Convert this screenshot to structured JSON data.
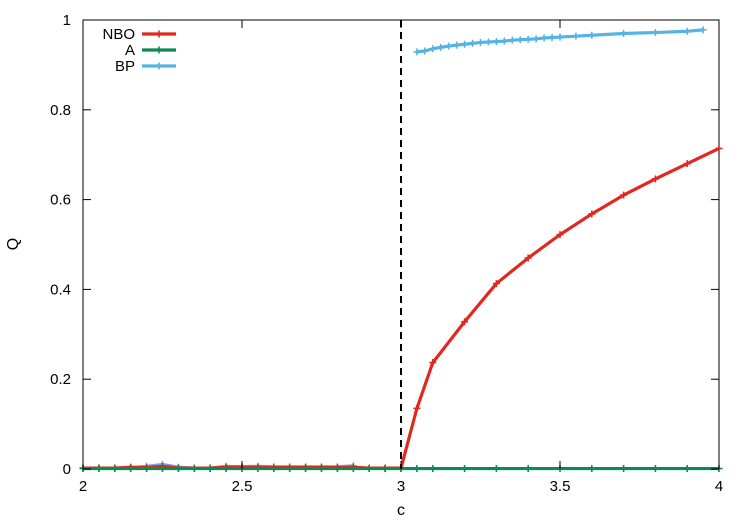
{
  "chart_data": {
    "type": "line",
    "xlabel": "c",
    "ylabel": "Q",
    "xlim": [
      2,
      4
    ],
    "ylim": [
      0,
      1
    ],
    "xticks": [
      "2",
      "2.5",
      "3",
      "3.5",
      "4"
    ],
    "yticks": [
      "0",
      "0.2",
      "0.4",
      "0.6",
      "0.8",
      "1"
    ],
    "grid": false,
    "legend_position": "top-left",
    "vline": {
      "x": 3,
      "style": "dashed",
      "color": "#000000"
    },
    "series": [
      {
        "name": "NBO",
        "color": "#e0281e",
        "x": [
          2,
          2.05,
          2.1,
          2.15,
          2.2,
          2.25,
          2.3,
          2.35,
          2.4,
          2.45,
          2.5,
          2.55,
          2.6,
          2.65,
          2.7,
          2.75,
          2.8,
          2.85,
          2.9,
          2.95,
          3.0,
          3.05,
          3.1,
          3.2,
          3.3,
          3.4,
          3.5,
          3.6,
          3.7,
          3.8,
          3.9,
          4.0
        ],
        "y": [
          0.002,
          0.002,
          0.002,
          0.004,
          0.003,
          0.006,
          0.002,
          0.002,
          0.002,
          0.004,
          0.004,
          0.004,
          0.003,
          0.003,
          0.003,
          0.003,
          0.003,
          0.004,
          0.002,
          0.002,
          0.002,
          0.135,
          0.237,
          0.328,
          0.413,
          0.47,
          0.522,
          0.568,
          0.61,
          0.646,
          0.68,
          0.714
        ]
      },
      {
        "name": "A",
        "color": "#0a8a55",
        "x": [
          2,
          2.05,
          2.1,
          2.15,
          2.2,
          2.25,
          2.3,
          2.35,
          2.4,
          2.45,
          2.5,
          2.55,
          2.6,
          2.65,
          2.7,
          2.75,
          2.8,
          2.85,
          2.9,
          2.95,
          3.0,
          3.05,
          3.1,
          3.2,
          3.3,
          3.4,
          3.5,
          3.6,
          3.7,
          3.8,
          3.9,
          4.0
        ],
        "y": [
          0.001,
          0.001,
          0.001,
          0.001,
          0.001,
          0.001,
          0.001,
          0.001,
          0.001,
          0.001,
          0.001,
          0.001,
          0.001,
          0.001,
          0.001,
          0.001,
          0.001,
          0.001,
          0.001,
          0.001,
          0.001,
          0.001,
          0.001,
          0.001,
          0.001,
          0.001,
          0.001,
          0.001,
          0.001,
          0.001,
          0.001,
          0.001
        ]
      },
      {
        "name": "BP",
        "color": "#55b3e6",
        "x": [
          2,
          2.05,
          2.1,
          2.15,
          2.2,
          2.25,
          2.3,
          2.35,
          2.4,
          2.45,
          2.5,
          2.55,
          2.6,
          2.65,
          2.7,
          2.75,
          2.8,
          2.85,
          3.05,
          3.075,
          3.1,
          3.125,
          3.15,
          3.175,
          3.2,
          3.225,
          3.25,
          3.275,
          3.3,
          3.325,
          3.35,
          3.375,
          3.4,
          3.425,
          3.45,
          3.475,
          3.5,
          3.55,
          3.6,
          3.7,
          3.8,
          3.9,
          3.95
        ],
        "y": [
          0.002,
          0.002,
          0.002,
          0.003,
          0.006,
          0.01,
          0.004,
          0.002,
          0.002,
          0.006,
          0.005,
          0.006,
          0.005,
          0.005,
          0.005,
          0.005,
          0.005,
          0.007,
          0.929,
          0.931,
          0.936,
          0.939,
          0.942,
          0.944,
          0.946,
          0.948,
          0.95,
          0.951,
          0.952,
          0.953,
          0.955,
          0.956,
          0.957,
          0.958,
          0.96,
          0.961,
          0.962,
          0.964,
          0.966,
          0.97,
          0.972,
          0.975,
          0.978
        ]
      }
    ]
  }
}
